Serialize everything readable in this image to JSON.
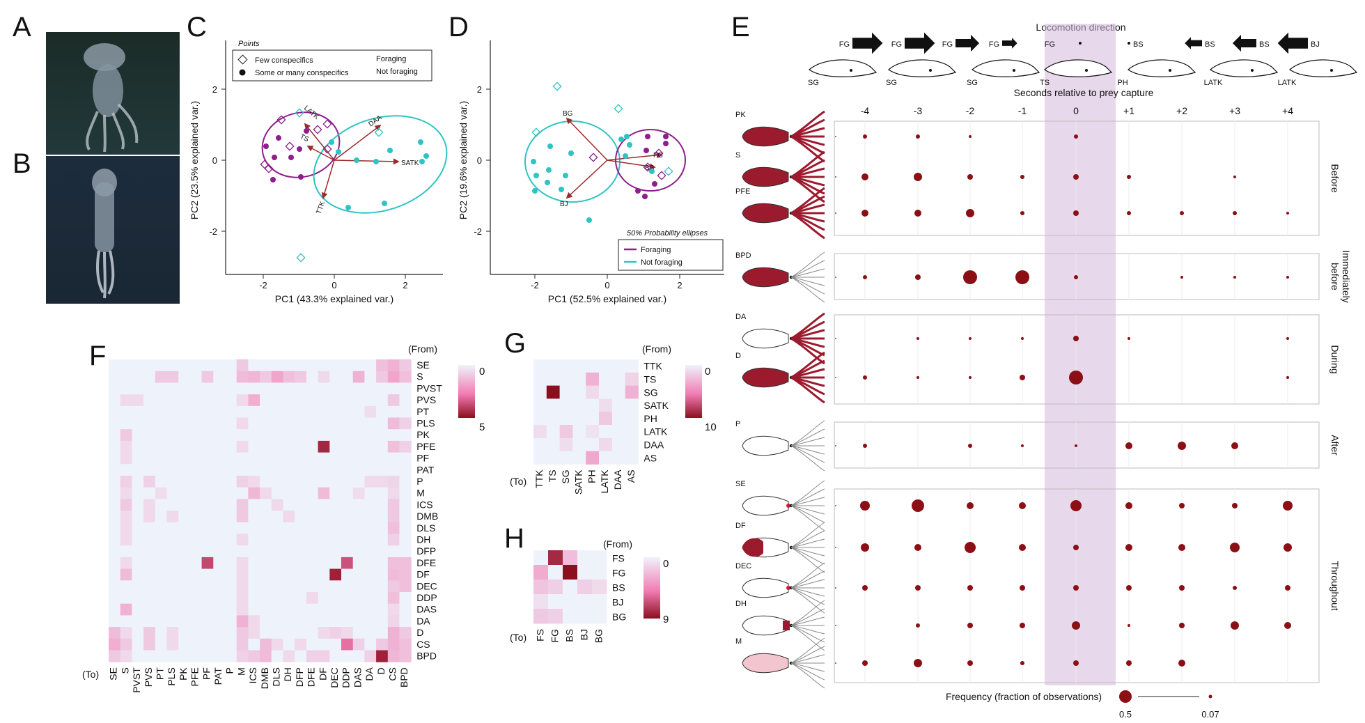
{
  "panels": {
    "A": "A",
    "B": "B",
    "C": "C",
    "D": "D",
    "E": "E",
    "F": "F",
    "G": "G",
    "H": "H"
  },
  "colors": {
    "foraging": "#8e1e8c",
    "not_foraging": "#2ec4c4",
    "arrow": "#9b2a2a",
    "dot": "#8b0f14",
    "band": "#d6b8dc",
    "heat_low": "#eef3fb",
    "heat_mid": "#f27cb3",
    "heat_high": "#8b0f1f"
  },
  "panelC": {
    "legend_title": "Points",
    "legend_few": "Few conspecifics",
    "legend_some": "Some or many conspecifics",
    "legend_foraging": "Foraging",
    "legend_not": "Not foraging",
    "xlabel": "PC1 (43.3% explained var.)",
    "ylabel": "PC2 (23.5% explained var.)",
    "xticks": [
      "-2",
      "0",
      "2"
    ],
    "yticks": [
      "2",
      "0",
      "-2"
    ],
    "arrow_labels": [
      "LATK",
      "DAA",
      "SATK",
      "TTK",
      "TS"
    ]
  },
  "panelD": {
    "legend_title": "50% Probability ellipses",
    "legend_foraging": "Foraging",
    "legend_not": "Not foraging",
    "xlabel": "PC1 (52.5% explained var.)",
    "ylabel": "PC2 (19.6% explained var.)",
    "xticks": [
      "-2",
      "0",
      "2"
    ],
    "yticks": [
      "2",
      "0",
      "-2"
    ],
    "arrow_labels": [
      "BG",
      "BJ",
      "FG",
      "BS"
    ]
  },
  "panelE": {
    "top_title": "Locomotion direction",
    "time_title": "Seconds relative to prey capture",
    "times": [
      "-4",
      "-3",
      "-2",
      "-1",
      "0",
      "+1",
      "+2",
      "+3",
      "+4"
    ],
    "arrow_labels": [
      "FG",
      "FG",
      "FG",
      "FG",
      "FG",
      "BS",
      "BS",
      "BS",
      "BJ"
    ],
    "posture_labels": [
      "SG",
      "SG",
      "SG",
      "TS",
      "PH",
      "LATK",
      "LATK"
    ],
    "behaviors": [
      "PK",
      "S",
      "PFE",
      "BPD",
      "DA",
      "D",
      "P",
      "SE",
      "DF",
      "DEC",
      "DH",
      "M"
    ],
    "groups": [
      "Before",
      "Immediately before",
      "During",
      "After",
      "Throughout"
    ],
    "legend_title": "Frequency (fraction of observations)",
    "legend_max": "0.5",
    "legend_min": "0.07"
  },
  "panelF": {
    "from_label": "(From)",
    "to_label": "(To)",
    "rows": [
      "SE",
      "S",
      "PVST",
      "PVS",
      "PT",
      "PLS",
      "PK",
      "PFE",
      "PF",
      "PAT",
      "P",
      "M",
      "ICS",
      "DMB",
      "DLS",
      "DH",
      "DFP",
      "DFE",
      "DF",
      "DEC",
      "DDP",
      "DAS",
      "DA",
      "D",
      "CS",
      "BPD"
    ],
    "cols": [
      "SE",
      "S",
      "PVST",
      "PVS",
      "PT",
      "PLS",
      "PK",
      "PFE",
      "PF",
      "PAT",
      "P",
      "M",
      "ICS",
      "DMB",
      "DLS",
      "DH",
      "DFP",
      "DFE",
      "DF",
      "DEC",
      "DDP",
      "DAS",
      "DA",
      "D",
      "CS",
      "BPD"
    ],
    "scale_max": "5",
    "scale_min": "0"
  },
  "panelG": {
    "from_label": "(From)",
    "to_label": "(To)",
    "rows": [
      "TTK",
      "TS",
      "SG",
      "SATK",
      "PH",
      "LATK",
      "DAA",
      "AS"
    ],
    "cols": [
      "TTK",
      "TS",
      "SG",
      "SATK",
      "PH",
      "LATK",
      "DAA",
      "AS"
    ],
    "scale_max": "10",
    "scale_min": "0"
  },
  "panelH": {
    "from_label": "(From)",
    "to_label": "(To)",
    "rows": [
      "FS",
      "FG",
      "BS",
      "BJ",
      "BG"
    ],
    "cols": [
      "FS",
      "FG",
      "BS",
      "BJ",
      "BG"
    ],
    "scale_max": "9",
    "scale_min": "0"
  }
}
